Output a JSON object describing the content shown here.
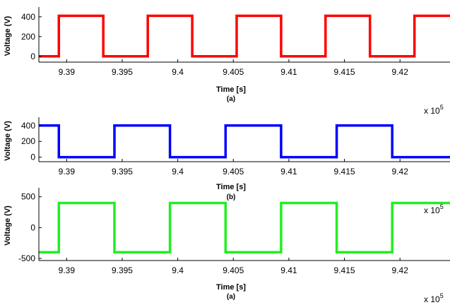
{
  "chart_data": [
    {
      "type": "line",
      "caption": "(a)",
      "xlabel": "Time [s]",
      "ylabel": "Voltage (V)",
      "x_multiplier": "x 10",
      "x_multiplier_exp": "5",
      "xlim": [
        9.3875,
        9.4245
      ],
      "ylim": [
        -30,
        470
      ],
      "xticks": [
        9.39,
        9.395,
        9.4,
        9.405,
        9.41,
        9.415,
        9.42
      ],
      "xtick_labels": [
        "9.39",
        "9.395",
        "9.4",
        "9.405",
        "9.41",
        "9.415",
        "9.42"
      ],
      "yticks": [
        0,
        200,
        400
      ],
      "ytick_labels": [
        "0",
        "200",
        "400"
      ],
      "color": "#ff0000",
      "series": [
        {
          "x": [
            9.3875,
            9.3893,
            9.3893,
            9.3933,
            9.3933,
            9.3973,
            9.3973,
            9.4013,
            9.4013,
            9.4053,
            9.4053,
            9.4093,
            9.4093,
            9.4133,
            9.4133,
            9.4173,
            9.4173,
            9.4213,
            9.4213,
            9.4245
          ],
          "y": [
            0,
            0,
            410,
            410,
            0,
            0,
            410,
            410,
            0,
            0,
            410,
            410,
            0,
            0,
            410,
            410,
            0,
            0,
            410,
            410
          ]
        }
      ]
    },
    {
      "type": "line",
      "caption": "(b)",
      "xlabel": "Time [s]",
      "ylabel": "Voltage (V)",
      "x_multiplier": "x 10",
      "x_multiplier_exp": "5",
      "xlim": [
        9.3875,
        9.4245
      ],
      "ylim": [
        -30,
        470
      ],
      "xticks": [
        9.39,
        9.395,
        9.4,
        9.405,
        9.41,
        9.415,
        9.42
      ],
      "xtick_labels": [
        "9.39",
        "9.395",
        "9.4",
        "9.405",
        "9.41",
        "9.415",
        "9.42"
      ],
      "yticks": [
        0,
        200,
        400
      ],
      "ytick_labels": [
        "0",
        "200",
        "400"
      ],
      "color": "#0000ff",
      "series": [
        {
          "x": [
            9.3875,
            9.3893,
            9.3893,
            9.3943,
            9.3943,
            9.3993,
            9.3993,
            9.4043,
            9.4043,
            9.4093,
            9.4093,
            9.4143,
            9.4143,
            9.4193,
            9.4193,
            9.4245
          ],
          "y": [
            400,
            400,
            0,
            0,
            400,
            400,
            0,
            0,
            400,
            400,
            0,
            0,
            400,
            400,
            0,
            0
          ]
        }
      ]
    },
    {
      "type": "line",
      "caption": "(a)",
      "xlabel": "Time [s]",
      "ylabel": "Voltage (V)",
      "x_multiplier": "x 10",
      "x_multiplier_exp": "5",
      "xlim": [
        9.3875,
        9.4245
      ],
      "ylim": [
        -500,
        600
      ],
      "xticks": [
        9.39,
        9.395,
        9.4,
        9.405,
        9.41,
        9.415,
        9.42
      ],
      "xtick_labels": [
        "9.39",
        "9.395",
        "9.4",
        "9.405",
        "9.41",
        "9.415",
        "9.42"
      ],
      "yticks": [
        -500,
        0,
        500
      ],
      "ytick_labels": [
        "-500",
        "0",
        "500"
      ],
      "color": "#22ee22",
      "series": [
        {
          "x": [
            9.3875,
            9.3893,
            9.3893,
            9.3943,
            9.3943,
            9.3993,
            9.3993,
            9.4043,
            9.4043,
            9.4093,
            9.4093,
            9.4143,
            9.4143,
            9.4193,
            9.4193,
            9.4245
          ],
          "y": [
            -400,
            -400,
            400,
            400,
            -400,
            -400,
            400,
            400,
            -400,
            -400,
            400,
            400,
            -400,
            -400,
            400,
            400
          ]
        }
      ]
    }
  ]
}
